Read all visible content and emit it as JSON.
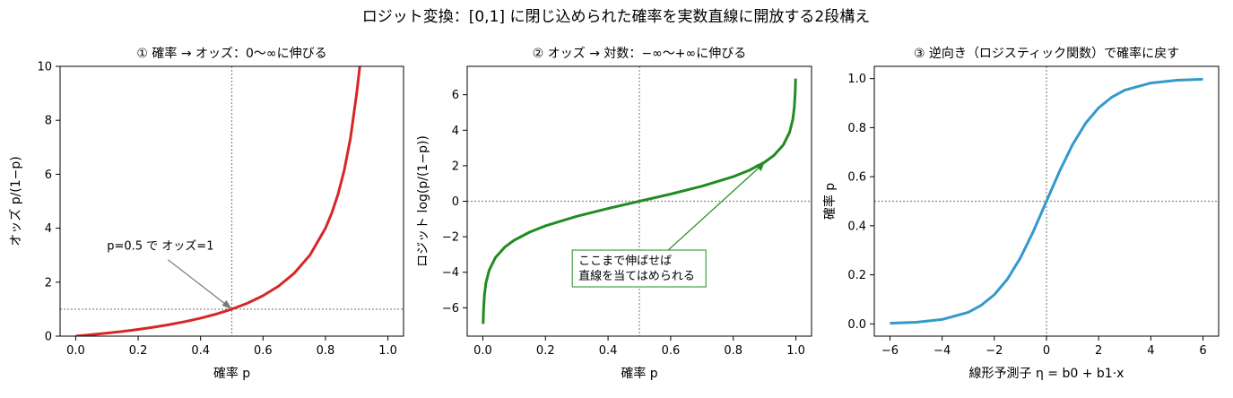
{
  "suptitle": "ロジット変換：[0,1] に閉じ込められた確率を実数直線に開放する2段構え",
  "chart_data": [
    {
      "type": "line",
      "title": "① 確率 → オッズ：0〜∞に伸びる",
      "xlabel": "確率 p",
      "ylabel": "オッズ p/(1−p)",
      "xlim": [
        -0.05,
        1.05
      ],
      "ylim": [
        0,
        10
      ],
      "xticks": [
        "0.0",
        "0.2",
        "0.4",
        "0.6",
        "0.8",
        "1.0"
      ],
      "yticks": [
        "0",
        "2",
        "4",
        "6",
        "8",
        "10"
      ],
      "grid": false,
      "series": [
        {
          "color": "#d62728",
          "x": [
            0.0,
            0.05,
            0.1,
            0.15,
            0.2,
            0.25,
            0.3,
            0.35,
            0.4,
            0.45,
            0.5,
            0.55,
            0.6,
            0.65,
            0.7,
            0.75,
            0.8,
            0.82,
            0.84,
            0.86,
            0.88,
            0.9,
            0.91
          ],
          "y": [
            0.0,
            0.053,
            0.111,
            0.176,
            0.25,
            0.333,
            0.429,
            0.538,
            0.667,
            0.818,
            1.0,
            1.222,
            1.5,
            1.857,
            2.333,
            3.0,
            4.0,
            4.556,
            5.25,
            6.143,
            7.333,
            9.0,
            10.0
          ]
        }
      ],
      "ref_lines": {
        "x": 0.5,
        "y": 1
      },
      "annotation": {
        "text": "p=0.5 で オッズ=1",
        "point": [
          0.5,
          1
        ],
        "text_at": [
          0.1,
          3.2
        ]
      }
    },
    {
      "type": "line",
      "title": "② オッズ → 対数：−∞〜+∞に伸びる",
      "xlabel": "確率 p",
      "ylabel": "ロジット log(p/(1−p))",
      "xlim": [
        -0.05,
        1.05
      ],
      "ylim": [
        -7.6,
        7.6
      ],
      "xticks": [
        "0.0",
        "0.2",
        "0.4",
        "0.6",
        "0.8",
        "1.0"
      ],
      "yticks": [
        "−6",
        "−4",
        "−2",
        "0",
        "2",
        "4",
        "6"
      ],
      "grid": false,
      "series": [
        {
          "color": "#228b22",
          "x": [
            0.001,
            0.002,
            0.005,
            0.01,
            0.02,
            0.04,
            0.07,
            0.1,
            0.15,
            0.2,
            0.3,
            0.4,
            0.5,
            0.6,
            0.7,
            0.8,
            0.85,
            0.9,
            0.93,
            0.96,
            0.98,
            0.99,
            0.995,
            0.998,
            0.999
          ],
          "y": [
            -6.907,
            -6.213,
            -5.293,
            -4.595,
            -3.892,
            -3.178,
            -2.586,
            -2.197,
            -1.735,
            -1.386,
            -0.847,
            -0.405,
            0.0,
            0.405,
            0.847,
            1.386,
            1.735,
            2.197,
            2.586,
            3.178,
            3.892,
            4.595,
            5.293,
            6.213,
            6.907
          ]
        }
      ],
      "ref_lines": {
        "x": 0.5,
        "y": 0
      },
      "annotation": {
        "text": [
          "ここまで伸ばせば",
          "直線を当てはめられる"
        ],
        "point": [
          0.9,
          2.197
        ],
        "text_at": [
          0.3,
          -2.5
        ]
      }
    },
    {
      "type": "line",
      "title": "③ 逆向き（ロジスティック関数）で確率に戻す",
      "xlabel": "線形予測子 η = b0 + b1·x",
      "ylabel": "確率 p",
      "xlim": [
        -6.6,
        6.6
      ],
      "ylim": [
        -0.05,
        1.05
      ],
      "xticks": [
        "−6",
        "−4",
        "−2",
        "0",
        "2",
        "4",
        "6"
      ],
      "yticks": [
        "0.0",
        "0.2",
        "0.4",
        "0.6",
        "0.8",
        "1.0"
      ],
      "grid": false,
      "series": [
        {
          "color": "#3399cc",
          "x": [
            -6,
            -5,
            -4,
            -3,
            -2.5,
            -2,
            -1.5,
            -1,
            -0.5,
            0,
            0.5,
            1,
            1.5,
            2,
            2.5,
            3,
            4,
            5,
            6
          ],
          "y": [
            0.0025,
            0.0067,
            0.018,
            0.047,
            0.076,
            0.119,
            0.182,
            0.269,
            0.378,
            0.5,
            0.622,
            0.731,
            0.818,
            0.881,
            0.924,
            0.953,
            0.982,
            0.9933,
            0.9975
          ]
        }
      ],
      "ref_lines": {
        "x": 0,
        "y": 0.5
      }
    }
  ]
}
